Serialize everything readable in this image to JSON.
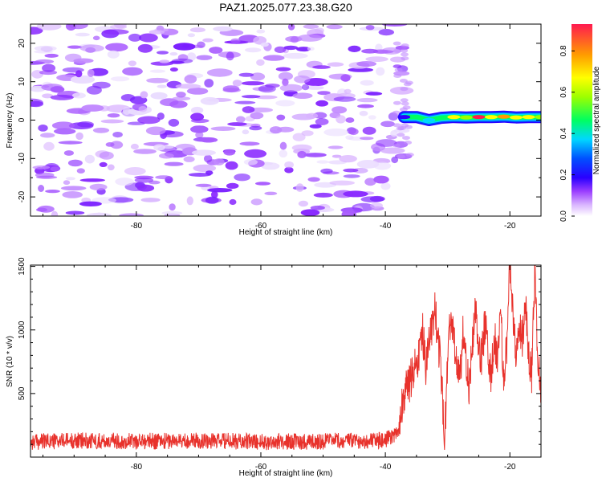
{
  "figure": {
    "title": "PAZ1.2025.077.23.38.G20"
  },
  "colors": {
    "snr_line": "#e8322c",
    "axes": "#000000",
    "background": "#ffffff",
    "colormap": [
      "#ffffff",
      "#d9b3ff",
      "#b070ff",
      "#7a1fff",
      "#2a00ff",
      "#0050ff",
      "#00d7ff",
      "#00ff60",
      "#9cff00",
      "#ffff00",
      "#ff9c00",
      "#ff1a50"
    ]
  },
  "chart_data": [
    {
      "type": "heatmap",
      "title": "PAZ1.2025.077.23.38.G20",
      "xlabel": "Height of straight line (km)",
      "ylabel": "Frequency (Hz)",
      "xlim": [
        -97,
        -15
      ],
      "ylim": [
        -25,
        25
      ],
      "xticks": [
        -80,
        -60,
        -40,
        -20
      ],
      "yticks": [
        -20,
        -10,
        0,
        10,
        20
      ],
      "colorbar": {
        "label": "Normalized spectral amplitude",
        "range": [
          0,
          0.93
        ],
        "ticks": [
          "0.0",
          "0.2",
          "0.4",
          "0.6",
          "0.8"
        ],
        "tick_values": [
          0.0,
          0.2,
          0.4,
          0.6,
          0.8
        ]
      },
      "noise_region": {
        "x": [
          -97,
          -37
        ],
        "y": [
          -25,
          25
        ],
        "amplitude": [
          0.0,
          0.2
        ]
      },
      "signal_ridge": [
        {
          "x": -37,
          "freq": 0.8,
          "amp": 0.3
        },
        {
          "x": -35,
          "freq": 0.8,
          "amp": 0.55
        },
        {
          "x": -33,
          "freq": 0.0,
          "amp": 0.5
        },
        {
          "x": -31,
          "freq": 0.6,
          "amp": 0.6
        },
        {
          "x": -29,
          "freq": 0.8,
          "amp": 0.72
        },
        {
          "x": -27,
          "freq": 0.7,
          "amp": 0.7
        },
        {
          "x": -25,
          "freq": 0.8,
          "amp": 0.9
        },
        {
          "x": -23,
          "freq": 0.8,
          "amp": 0.75
        },
        {
          "x": -21,
          "freq": 0.9,
          "amp": 0.85
        },
        {
          "x": -19,
          "freq": 0.7,
          "amp": 0.8
        },
        {
          "x": -17,
          "freq": 0.8,
          "amp": 0.75
        },
        {
          "x": -15,
          "freq": 0.8,
          "amp": 0.7
        }
      ],
      "grid": false
    },
    {
      "type": "line",
      "xlabel": "Height of straight line (km)",
      "ylabel": "SNR (10 * v/v)",
      "xlim": [
        -97,
        -15
      ],
      "ylim": [
        0,
        1510
      ],
      "xticks": [
        -80,
        -60,
        -40,
        -20
      ],
      "yticks": [
        500,
        1000,
        1500
      ],
      "grid": false,
      "series": [
        {
          "x": [
            -97,
            -90,
            -80,
            -70,
            -60,
            -50,
            -40,
            -38,
            -37.5,
            -37,
            -36,
            -35.5,
            -35,
            -34.5,
            -34,
            -33.5,
            -33,
            -32.5,
            -32,
            -31.5,
            -31,
            -30.5,
            -30,
            -29.5,
            -29,
            -28.5,
            -28,
            -27.5,
            -27,
            -26.5,
            -26,
            -25.5,
            -25,
            -24.5,
            -24,
            -23.5,
            -23,
            -22.5,
            -22,
            -21.5,
            -21,
            -20.5,
            -20,
            -19.5,
            -19,
            -18.5,
            -18,
            -17.5,
            -17,
            -16.5,
            -16,
            -15.5,
            -15
          ],
          "values": [
            120,
            130,
            125,
            130,
            120,
            125,
            130,
            200,
            380,
            480,
            600,
            700,
            750,
            820,
            980,
            700,
            880,
            1050,
            1150,
            900,
            650,
            100,
            800,
            1100,
            950,
            700,
            620,
            1000,
            760,
            550,
            900,
            1150,
            860,
            780,
            1050,
            870,
            600,
            980,
            720,
            1170,
            600,
            880,
            1500,
            1150,
            780,
            1000,
            940,
            1200,
            850,
            620,
            1480,
            780,
            500
          ]
        }
      ]
    }
  ]
}
